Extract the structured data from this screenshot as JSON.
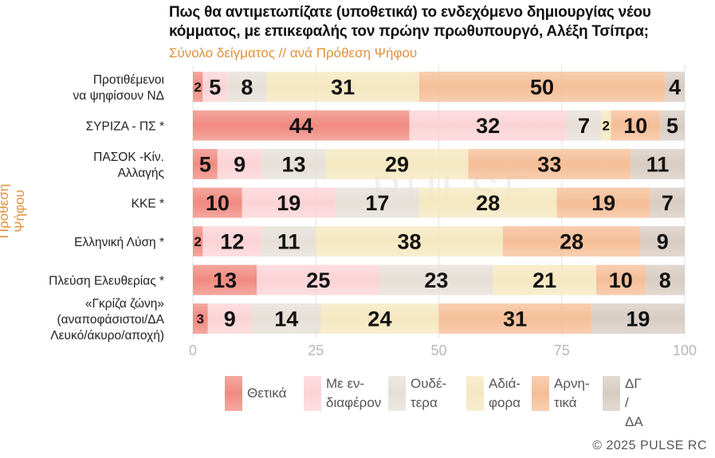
{
  "title": "Πως θα αντιμετωπίζατε (υποθετικά) το ενδεχόμενο δημιουργίας νέου κόμματος, με επικεφαλής τον πρώην πρωθυπουργό, Αλέξη Τσίπρα;",
  "subtitle": "Σύνολο δείγματος // ανά Πρόθεση Ψήφου",
  "y_axis_title": "Πρόθεση Ψήφου",
  "watermark": "PULSE",
  "footer": "©  2025  PULSE RC",
  "colors": {
    "positive": "#f08a80",
    "interested": "#fbd3d6",
    "neutral": "#e6dfd8",
    "indifferent": "#f5e8c0",
    "negative": "#f5be96",
    "dk": "#d8ccc2"
  },
  "chart_data": {
    "type": "bar",
    "orientation": "horizontal",
    "stacked": true,
    "title": "Πως θα αντιμετωπίζατε (υποθετικά) το ενδεχόμενο δημιουργίας νέου κόμματος, με επικεφαλής τον πρώην πρωθυπουργό, Αλέξη Τσίπρα;",
    "subtitle": "Σύνολο δείγματος // ανά Πρόθεση Ψήφου",
    "ylabel": "Πρόθεση Ψήφου",
    "xlim": [
      0,
      100
    ],
    "xticks": [
      0,
      25,
      50,
      75,
      100
    ],
    "categories": [
      "Προτιθέμενοι\nνα ψηφίσουν ΝΔ",
      "ΣΥΡΙΖΑ - ΠΣ *",
      "ΠΑΣΟΚ -Κίν.\nΑλλαγής",
      "ΚΚΕ *",
      "Ελληνική Λύση *",
      "Πλεύση Ελευθερίας *",
      "«Γκρίζα ζώνη»\n(αναποφάσιστοι/ΔΑ\nΛευκό/άκυρο/αποχή)"
    ],
    "series": [
      {
        "name": "Θετικά",
        "legend": "Θετικά",
        "color_key": "positive",
        "values": [
          2,
          44,
          5,
          10,
          2,
          13,
          3
        ]
      },
      {
        "name": "Με ενδιαφέρον",
        "legend": "Με εν-\nδιαφέρον",
        "color_key": "interested",
        "values": [
          5,
          32,
          9,
          19,
          12,
          25,
          9
        ]
      },
      {
        "name": "Ουδέτερα",
        "legend": "Ουδέ-\nτερα",
        "color_key": "neutral",
        "values": [
          8,
          7,
          13,
          17,
          11,
          23,
          14
        ]
      },
      {
        "name": "Αδιάφορα",
        "legend": "Αδιά-\nφορα",
        "color_key": "indifferent",
        "values": [
          31,
          2,
          29,
          28,
          38,
          21,
          24
        ]
      },
      {
        "name": "Αρνητικά",
        "legend": "Αρνη-\nτικά",
        "color_key": "negative",
        "values": [
          50,
          10,
          33,
          19,
          28,
          10,
          31
        ]
      },
      {
        "name": "ΔΓ / ΔΑ",
        "legend": "ΔΓ /\nΔΑ",
        "color_key": "dk",
        "values": [
          4,
          5,
          11,
          7,
          9,
          8,
          19
        ]
      }
    ]
  }
}
